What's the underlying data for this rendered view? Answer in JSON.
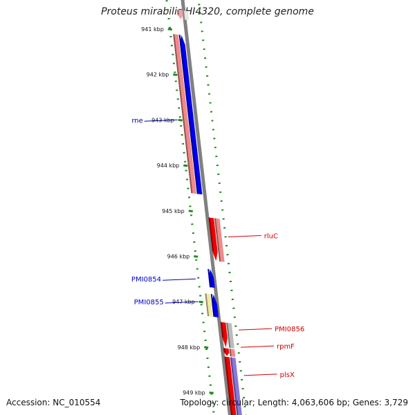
{
  "title": "Proteus mirabilis HI4320, complete genome",
  "footer": {
    "accession": "Accession: NC_010554",
    "summary": "Topology: circular; Length: 4,063,606 bp; Genes: 3,729"
  },
  "ticks": [
    {
      "label": "941 kbp",
      "pos": 941.0
    },
    {
      "label": "942 kbp",
      "pos": 942.0
    },
    {
      "label": "943 kbp",
      "pos": 943.0
    },
    {
      "label": "944 kbp",
      "pos": 944.0
    },
    {
      "label": "945 kbp",
      "pos": 945.0
    },
    {
      "label": "946 kbp",
      "pos": 946.0
    },
    {
      "label": "947 kbp",
      "pos": 947.0
    },
    {
      "label": "948 kbp",
      "pos": 948.0
    },
    {
      "label": "949 kbp",
      "pos": 949.0
    }
  ],
  "gene_labels": [
    {
      "name": "rne",
      "pos": 943.0,
      "side": "left",
      "color": "#00008b"
    },
    {
      "name": "rluC",
      "pos": 945.45,
      "side": "right",
      "color": "#cc0000"
    },
    {
      "name": "PMI0854",
      "pos": 946.5,
      "side": "left",
      "color": "#0000cc"
    },
    {
      "name": "PMI0855",
      "pos": 947.0,
      "side": "left",
      "color": "#0000cc"
    },
    {
      "name": "PMI0856",
      "pos": 947.5,
      "side": "right",
      "color": "#cc0000"
    },
    {
      "name": "rpmF",
      "pos": 947.88,
      "side": "right",
      "color": "#cc0000"
    },
    {
      "name": "plsX",
      "pos": 948.5,
      "side": "right",
      "color": "#cc0000"
    }
  ],
  "features": [
    {
      "id": "top-white",
      "start": 940.55,
      "end": 940.75,
      "lane": 0.2,
      "color": "#e6e6e6",
      "arrow": "none"
    },
    {
      "id": "top-red",
      "start": 940.55,
      "end": 940.75,
      "lane": -0.6,
      "color": "#f7a0a0",
      "arrow": "down"
    },
    {
      "id": "rne-cds",
      "start": 941.1,
      "end": 944.6,
      "lane": -1.6,
      "color": "#f08a8a",
      "arrow": "none"
    },
    {
      "id": "rne-gene",
      "start": 941.1,
      "end": 944.6,
      "lane": -0.75,
      "color": "#0000ee",
      "arrow": "up"
    },
    {
      "id": "rluC-gene",
      "start": 945.1,
      "end": 946.05,
      "lane": 0.55,
      "color": "#ee0000",
      "arrow": "down"
    },
    {
      "id": "rluC-cds",
      "start": 945.1,
      "end": 946.05,
      "lane": 1.4,
      "color": "#f08a8a",
      "arrow": "none"
    },
    {
      "id": "pmi0854-gene",
      "start": 946.25,
      "end": 946.65,
      "lane": -0.45,
      "color": "#0000ee",
      "arrow": "up"
    },
    {
      "id": "pmi0855-cds",
      "start": 946.8,
      "end": 947.3,
      "lane": -1.25,
      "color": "#f2eaa0",
      "arrow": "none"
    },
    {
      "id": "pmi0855-gene",
      "start": 946.8,
      "end": 947.3,
      "lane": -0.4,
      "color": "#0000ee",
      "arrow": "up"
    },
    {
      "id": "pmi0856-gene",
      "start": 947.4,
      "end": 947.95,
      "lane": 0.55,
      "color": "#ee0000",
      "arrow": "down"
    },
    {
      "id": "pmi0856-cds",
      "start": 947.4,
      "end": 947.95,
      "lane": 1.4,
      "color": "#bbbbbb",
      "arrow": "none"
    },
    {
      "id": "rpmF-gene",
      "start": 947.97,
      "end": 948.14,
      "lane": 0.55,
      "color": "#ee0000",
      "arrow": "down"
    },
    {
      "id": "rpmF-cds",
      "start": 947.97,
      "end": 948.14,
      "lane": 1.4,
      "color": "#f08a8a",
      "arrow": "none"
    },
    {
      "id": "plsX-gene",
      "start": 948.16,
      "end": 949.5,
      "lane": 0.55,
      "color": "#ee0000",
      "arrow": "none"
    },
    {
      "id": "plsX-cds",
      "start": 948.16,
      "end": 949.5,
      "lane": 1.4,
      "color": "#8877dd",
      "arrow": "none"
    }
  ]
}
